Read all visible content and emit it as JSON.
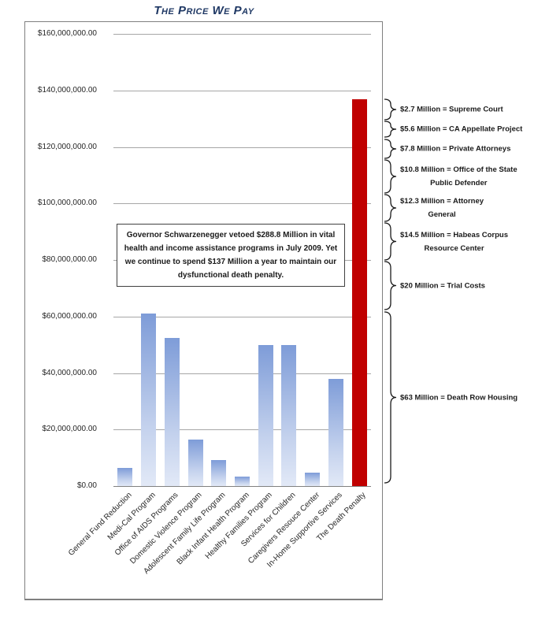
{
  "title": "The Price We Pay",
  "chart_data": {
    "type": "bar",
    "title": "The Price We Pay",
    "unit": "USD",
    "categories": [
      "General Fund Reduction",
      "Medi-Cal Program",
      "Office of AIDS Programs",
      "Domestic Violence Program",
      "Adolescent Family Life Program",
      "Black Infant Health Program",
      "Healthy Families Program",
      "Services for Children",
      "Caregivers Resouce Center",
      "In-Home Supportive Services",
      "The Death Penalty"
    ],
    "values_millions": [
      6.4,
      61,
      52.5,
      16.5,
      9.2,
      3.4,
      50,
      50,
      4.8,
      37.8,
      137
    ],
    "highlight_index": 10,
    "highlight_color": "#C00000",
    "bar_gradient": [
      "#7E9CD8",
      "#E2E9F7"
    ],
    "ylim_millions": [
      0,
      160
    ],
    "grid": true,
    "legend_position": "none",
    "y_ticks": [
      {
        "value_millions": 0,
        "label": "$0.00"
      },
      {
        "value_millions": 20,
        "label": "$20,000,000.00"
      },
      {
        "value_millions": 40,
        "label": "$40,000,000.00"
      },
      {
        "value_millions": 60,
        "label": "$60,000,000.00"
      },
      {
        "value_millions": 80,
        "label": "$80,000,000.00"
      },
      {
        "value_millions": 100,
        "label": "$100,000,000.00"
      },
      {
        "value_millions": 120,
        "label": "$120,000,000.00"
      },
      {
        "value_millions": 140,
        "label": "$140,000,000.00"
      },
      {
        "value_millions": 160,
        "label": "$160,000,000.00"
      }
    ]
  },
  "annotation_box": {
    "text": "Governor Schwarzenegger vetoed $288.8 Million in vital health and income assistance programs in July 2009.  Yet we continue to spend $137 Million a year to maintain our dysfunctional death penalty."
  },
  "death_penalty_breakdown": [
    {
      "amount_millions": 2.7,
      "label": "$2.7 Million = Supreme Court"
    },
    {
      "amount_millions": 5.6,
      "label": "$5.6 Million = CA Appellate Project"
    },
    {
      "amount_millions": 7.8,
      "label": "$7.8 Million = Private Attorneys"
    },
    {
      "amount_millions": 10.8,
      "label": "$10.8 Million = Office of the State\nPublic Defender"
    },
    {
      "amount_millions": 12.3,
      "label": "$12.3 Million = Attorney\nGeneral"
    },
    {
      "amount_millions": 14.5,
      "label": "$14.5 Million = Habeas Corpus\nResource Center"
    },
    {
      "amount_millions": 20,
      "label": "$20 Million = Trial Costs"
    },
    {
      "amount_millions": 63,
      "label": "$63 Million = Death Row Housing"
    }
  ],
  "colors": {
    "title": "#1F3864",
    "highlight": "#C00000",
    "gridline": "#A6A6A6",
    "frame_border": "#7F7F7F"
  }
}
